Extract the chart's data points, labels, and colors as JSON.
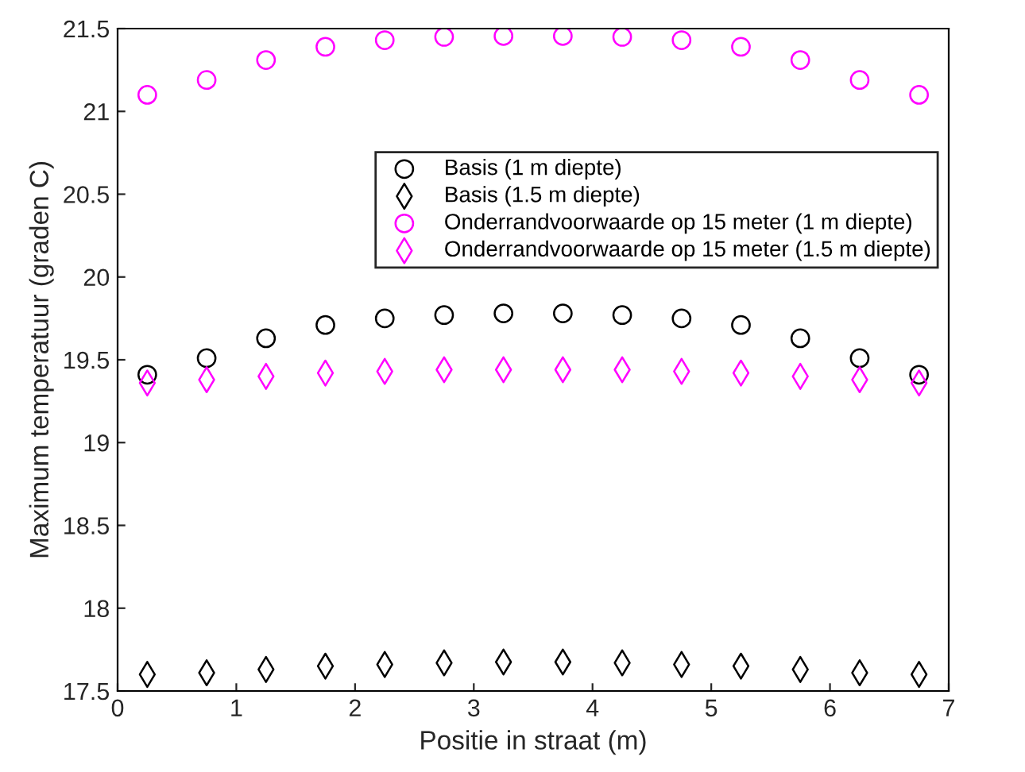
{
  "chart_data": {
    "type": "scatter",
    "xlabel": "Positie in straat (m)",
    "ylabel": "Maximum temperatuur (graden C)",
    "x": [
      0.25,
      0.75,
      1.25,
      1.75,
      2.25,
      2.75,
      3.25,
      3.75,
      4.25,
      4.75,
      5.25,
      5.75,
      6.25,
      6.75
    ],
    "series": [
      {
        "name": "Basis (1 m diepte)",
        "color": "#000000",
        "marker": "circle",
        "values": [
          19.41,
          19.51,
          19.63,
          19.71,
          19.75,
          19.77,
          19.78,
          19.78,
          19.77,
          19.75,
          19.71,
          19.63,
          19.51,
          19.41
        ]
      },
      {
        "name": "Basis (1.5 m diepte)",
        "color": "#000000",
        "marker": "diamond",
        "values": [
          17.6,
          17.61,
          17.63,
          17.65,
          17.66,
          17.67,
          17.675,
          17.675,
          17.67,
          17.66,
          17.65,
          17.63,
          17.61,
          17.6
        ]
      },
      {
        "name": "Onderrandvoorwaarde op 15 meter (1 m diepte)",
        "color": "#ff00ff",
        "marker": "circle",
        "values": [
          21.1,
          21.19,
          21.31,
          21.39,
          21.43,
          21.45,
          21.455,
          21.455,
          21.45,
          21.43,
          21.39,
          21.31,
          21.19,
          21.1
        ]
      },
      {
        "name": "Onderrandvoorwaarde op 15 meter (1.5 m diepte)",
        "color": "#ff00ff",
        "marker": "diamond",
        "values": [
          19.36,
          19.38,
          19.4,
          19.42,
          19.43,
          19.44,
          19.44,
          19.44,
          19.44,
          19.43,
          19.42,
          19.4,
          19.38,
          19.36
        ]
      }
    ],
    "xlim": [
      0,
      7
    ],
    "xticks": [
      0,
      1,
      2,
      3,
      4,
      5,
      6,
      7
    ],
    "ylim": [
      17.5,
      21.5
    ],
    "yticks": [
      17.5,
      18,
      18.5,
      19,
      19.5,
      20,
      20.5,
      21,
      21.5
    ],
    "grid": false,
    "legend": "top right"
  }
}
